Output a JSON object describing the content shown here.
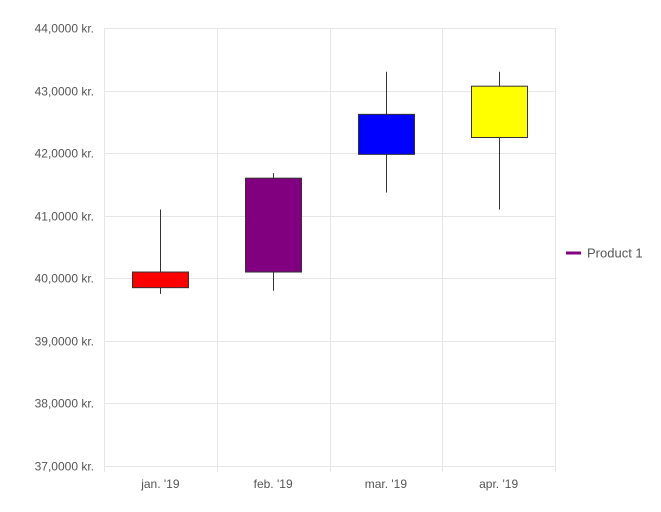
{
  "chart_data": {
    "type": "candlestick",
    "categories": [
      "jan. '19",
      "feb. '19",
      "mar. '19",
      "apr. '19"
    ],
    "series": [
      {
        "name": "Product 1",
        "color": "#800080",
        "candles": [
          {
            "open": 40.1,
            "high": 41.1,
            "low": 39.75,
            "close": 39.85,
            "color": "#ff0000"
          },
          {
            "open": 40.1,
            "high": 41.68,
            "low": 39.8,
            "close": 41.6,
            "color": "#800080"
          },
          {
            "open": 41.98,
            "high": 43.3,
            "low": 41.37,
            "close": 42.62,
            "color": "#0000ff"
          },
          {
            "open": 42.25,
            "high": 43.3,
            "low": 41.1,
            "close": 43.07,
            "color": "#ffff00"
          }
        ]
      }
    ],
    "ylim": [
      37.0,
      44.0
    ],
    "yticks": [
      {
        "value": 44.0,
        "label": "44,0000 kr."
      },
      {
        "value": 43.0,
        "label": "43,0000 kr."
      },
      {
        "value": 42.0,
        "label": "42,0000 kr."
      },
      {
        "value": 41.0,
        "label": "41,0000 kr."
      },
      {
        "value": 40.0,
        "label": "40,0000 kr."
      },
      {
        "value": 39.0,
        "label": "39,0000 kr."
      },
      {
        "value": 38.0,
        "label": "38,0000 kr."
      },
      {
        "value": 37.0,
        "label": "37,0000 kr."
      }
    ],
    "grid": true,
    "legend_position": "right",
    "legend": [
      {
        "label": "Product 1",
        "color": "#800080"
      }
    ]
  }
}
